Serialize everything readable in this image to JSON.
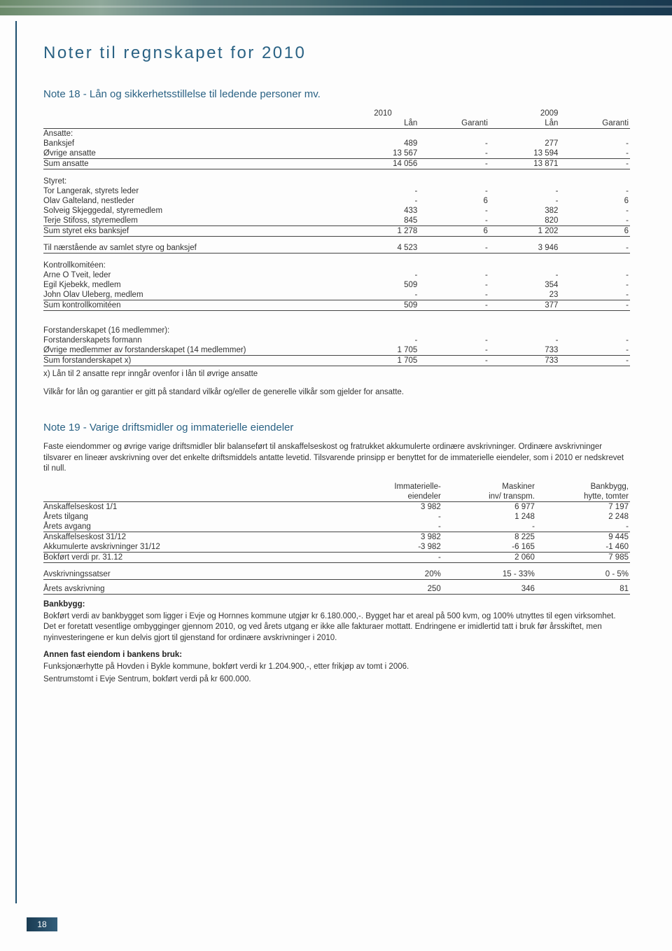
{
  "page_number": "18",
  "title": "Noter til regnskapet for 2010",
  "note18": {
    "title": "Note 18 - Lån og sikkerhetsstillelse til ledende personer mv.",
    "header": {
      "y2010": "2010",
      "y2009": "2009",
      "lan": "Lån",
      "gar": "Garanti"
    },
    "rows": [
      {
        "label": "Ansatte:",
        "c": [
          "",
          "",
          "",
          ""
        ]
      },
      {
        "label": "Banksjef",
        "c": [
          "489",
          "-",
          "277",
          "-"
        ]
      },
      {
        "label": "Øvrige ansatte",
        "c": [
          "13 567",
          "-",
          "13 594",
          "-"
        ],
        "rule": true
      },
      {
        "label": "Sum ansatte",
        "c": [
          "14 056",
          "-",
          "13 871",
          "-"
        ],
        "rule": true
      }
    ],
    "styret": [
      {
        "label": "Styret:",
        "c": [
          "",
          "",
          "",
          ""
        ]
      },
      {
        "label": "Tor Langerak, styrets leder",
        "c": [
          "-",
          "-",
          "-",
          "-"
        ]
      },
      {
        "label": "Olav Galteland, nestleder",
        "c": [
          "-",
          "6",
          "-",
          "6"
        ]
      },
      {
        "label": "Solveig Skjeggedal, styremedlem",
        "c": [
          "433",
          "-",
          "382",
          "-"
        ]
      },
      {
        "label": "Terje Stifoss, styremedlem",
        "c": [
          "845",
          "-",
          "820",
          "-"
        ],
        "rule": true
      },
      {
        "label": "Sum styret eks banksjef",
        "c": [
          "1 278",
          "6",
          "1 202",
          "6"
        ],
        "rule": true
      }
    ],
    "naer": [
      {
        "label": "Til nærstående av samlet styre og banksjef",
        "c": [
          "4 523",
          "-",
          "3 946",
          "-"
        ],
        "rule": true
      }
    ],
    "kontroll": [
      {
        "label": "Kontrollkomitéen:",
        "c": [
          "",
          "",
          "",
          ""
        ]
      },
      {
        "label": "Arne O Tveit, leder",
        "c": [
          "-",
          "-",
          "-",
          "-"
        ]
      },
      {
        "label": "Egil Kjebekk, medlem",
        "c": [
          "509",
          "-",
          "354",
          "-"
        ]
      },
      {
        "label": "John Olav Uleberg, medlem",
        "c": [
          "-",
          "-",
          "23",
          "-"
        ],
        "rule": true
      },
      {
        "label": "Sum kontrollkomitéen",
        "c": [
          "509",
          "-",
          "377",
          "-"
        ],
        "rule": true
      }
    ],
    "forstander": [
      {
        "label": "Forstanderskapet (16 medlemmer):",
        "c": [
          "",
          "",
          "",
          ""
        ]
      },
      {
        "label": "Forstanderskapets formann",
        "c": [
          "-",
          "-",
          "-",
          "-"
        ]
      },
      {
        "label": "Øvrige medlemmer av forstanderskapet (14 medlemmer)",
        "c": [
          "1 705",
          "-",
          "733",
          "-"
        ],
        "rule": true
      },
      {
        "label": "Sum forstanderskapet x)",
        "c": [
          "1 705",
          "-",
          "733",
          "-"
        ],
        "rule": true
      }
    ],
    "footnote_x": "x) Lån til 2 ansatte repr inngår ovenfor i lån til øvrige ansatte",
    "vilkar": "Vilkår for lån og garantier er gitt på standard vilkår og/eller de generelle vilkår som gjelder for ansatte."
  },
  "note19": {
    "title": "Note 19 - Varige driftsmidler og immaterielle eiendeler",
    "intro": "Faste eiendommer og øvrige varige driftsmidler blir balanseført til anskaffelseskost og fratrukket akkumulerte ordinære avskrivninger. Ordinære avskrivninger tilsvarer en lineær avskrivning over det enkelte driftsmiddels antatte levetid. Tilsvarende prinsipp er benyttet for de immaterielle eiendeler, som i 2010 er nedskrevet til null.",
    "header1": {
      "c1": "Immaterielle-",
      "c2": "Maskiner",
      "c3": "Bankbygg,"
    },
    "header2": {
      "c1": "eiendeler",
      "c2": "inv/ transpm.",
      "c3": "hytte, tomter"
    },
    "rows": [
      {
        "label": "Anskaffelseskost 1/1",
        "c": [
          "3 982",
          "6 977",
          "7 197"
        ]
      },
      {
        "label": "Årets tilgang",
        "c": [
          "-",
          "1 248",
          "2 248"
        ]
      },
      {
        "label": "Årets avgang",
        "c": [
          "-",
          "-",
          "-"
        ],
        "rule": true
      },
      {
        "label": "Anskaffelseskost 31/12",
        "c": [
          "3 982",
          "8 225",
          "9 445"
        ]
      },
      {
        "label": "Akkumulerte avskrivninger 31/12",
        "c": [
          "-3 982",
          "-6 165",
          "-1 460"
        ],
        "rule": true
      },
      {
        "label": " Bokført verdi pr. 31.12",
        "c": [
          "-",
          "2 060",
          "7 985"
        ],
        "rule": true
      }
    ],
    "avskr_sats": {
      "label": "Avskrivningssatser",
      "c": [
        "20%",
        "15 -  33%",
        "0  -   5%"
      ]
    },
    "avskr_ar": {
      "label": "Årets avskrivning",
      "c": [
        "250",
        "346",
        "81"
      ]
    },
    "bankbygg_h": "Bankbygg:",
    "bankbygg": "Bokført verdi av bankbygget som ligger i Evje og Hornnes kommune utgjør kr 6.180.000,-. Bygget har et areal på 500 kvm, og 100% utnyttes til egen virksomhet. Det er foretatt vesentlige ombygginger gjennom 2010, og ved årets utgang er ikke alle fakturaer mottatt. Endringene er imidlertid tatt i bruk før årsskiftet, men nyinvesteringene er kun delvis gjort til gjenstand for ordinære avskrivninger i 2010.",
    "annen_h": "Annen fast eiendom i bankens bruk:",
    "annen1": "Funksjonærhytte på Hovden i Bykle kommune, bokført verdi kr 1.204.900,-, etter frikjøp av tomt i 2006.",
    "annen2": "Sentrumstomt i Evje Sentrum,  bokført verdi på  kr 600.000."
  }
}
